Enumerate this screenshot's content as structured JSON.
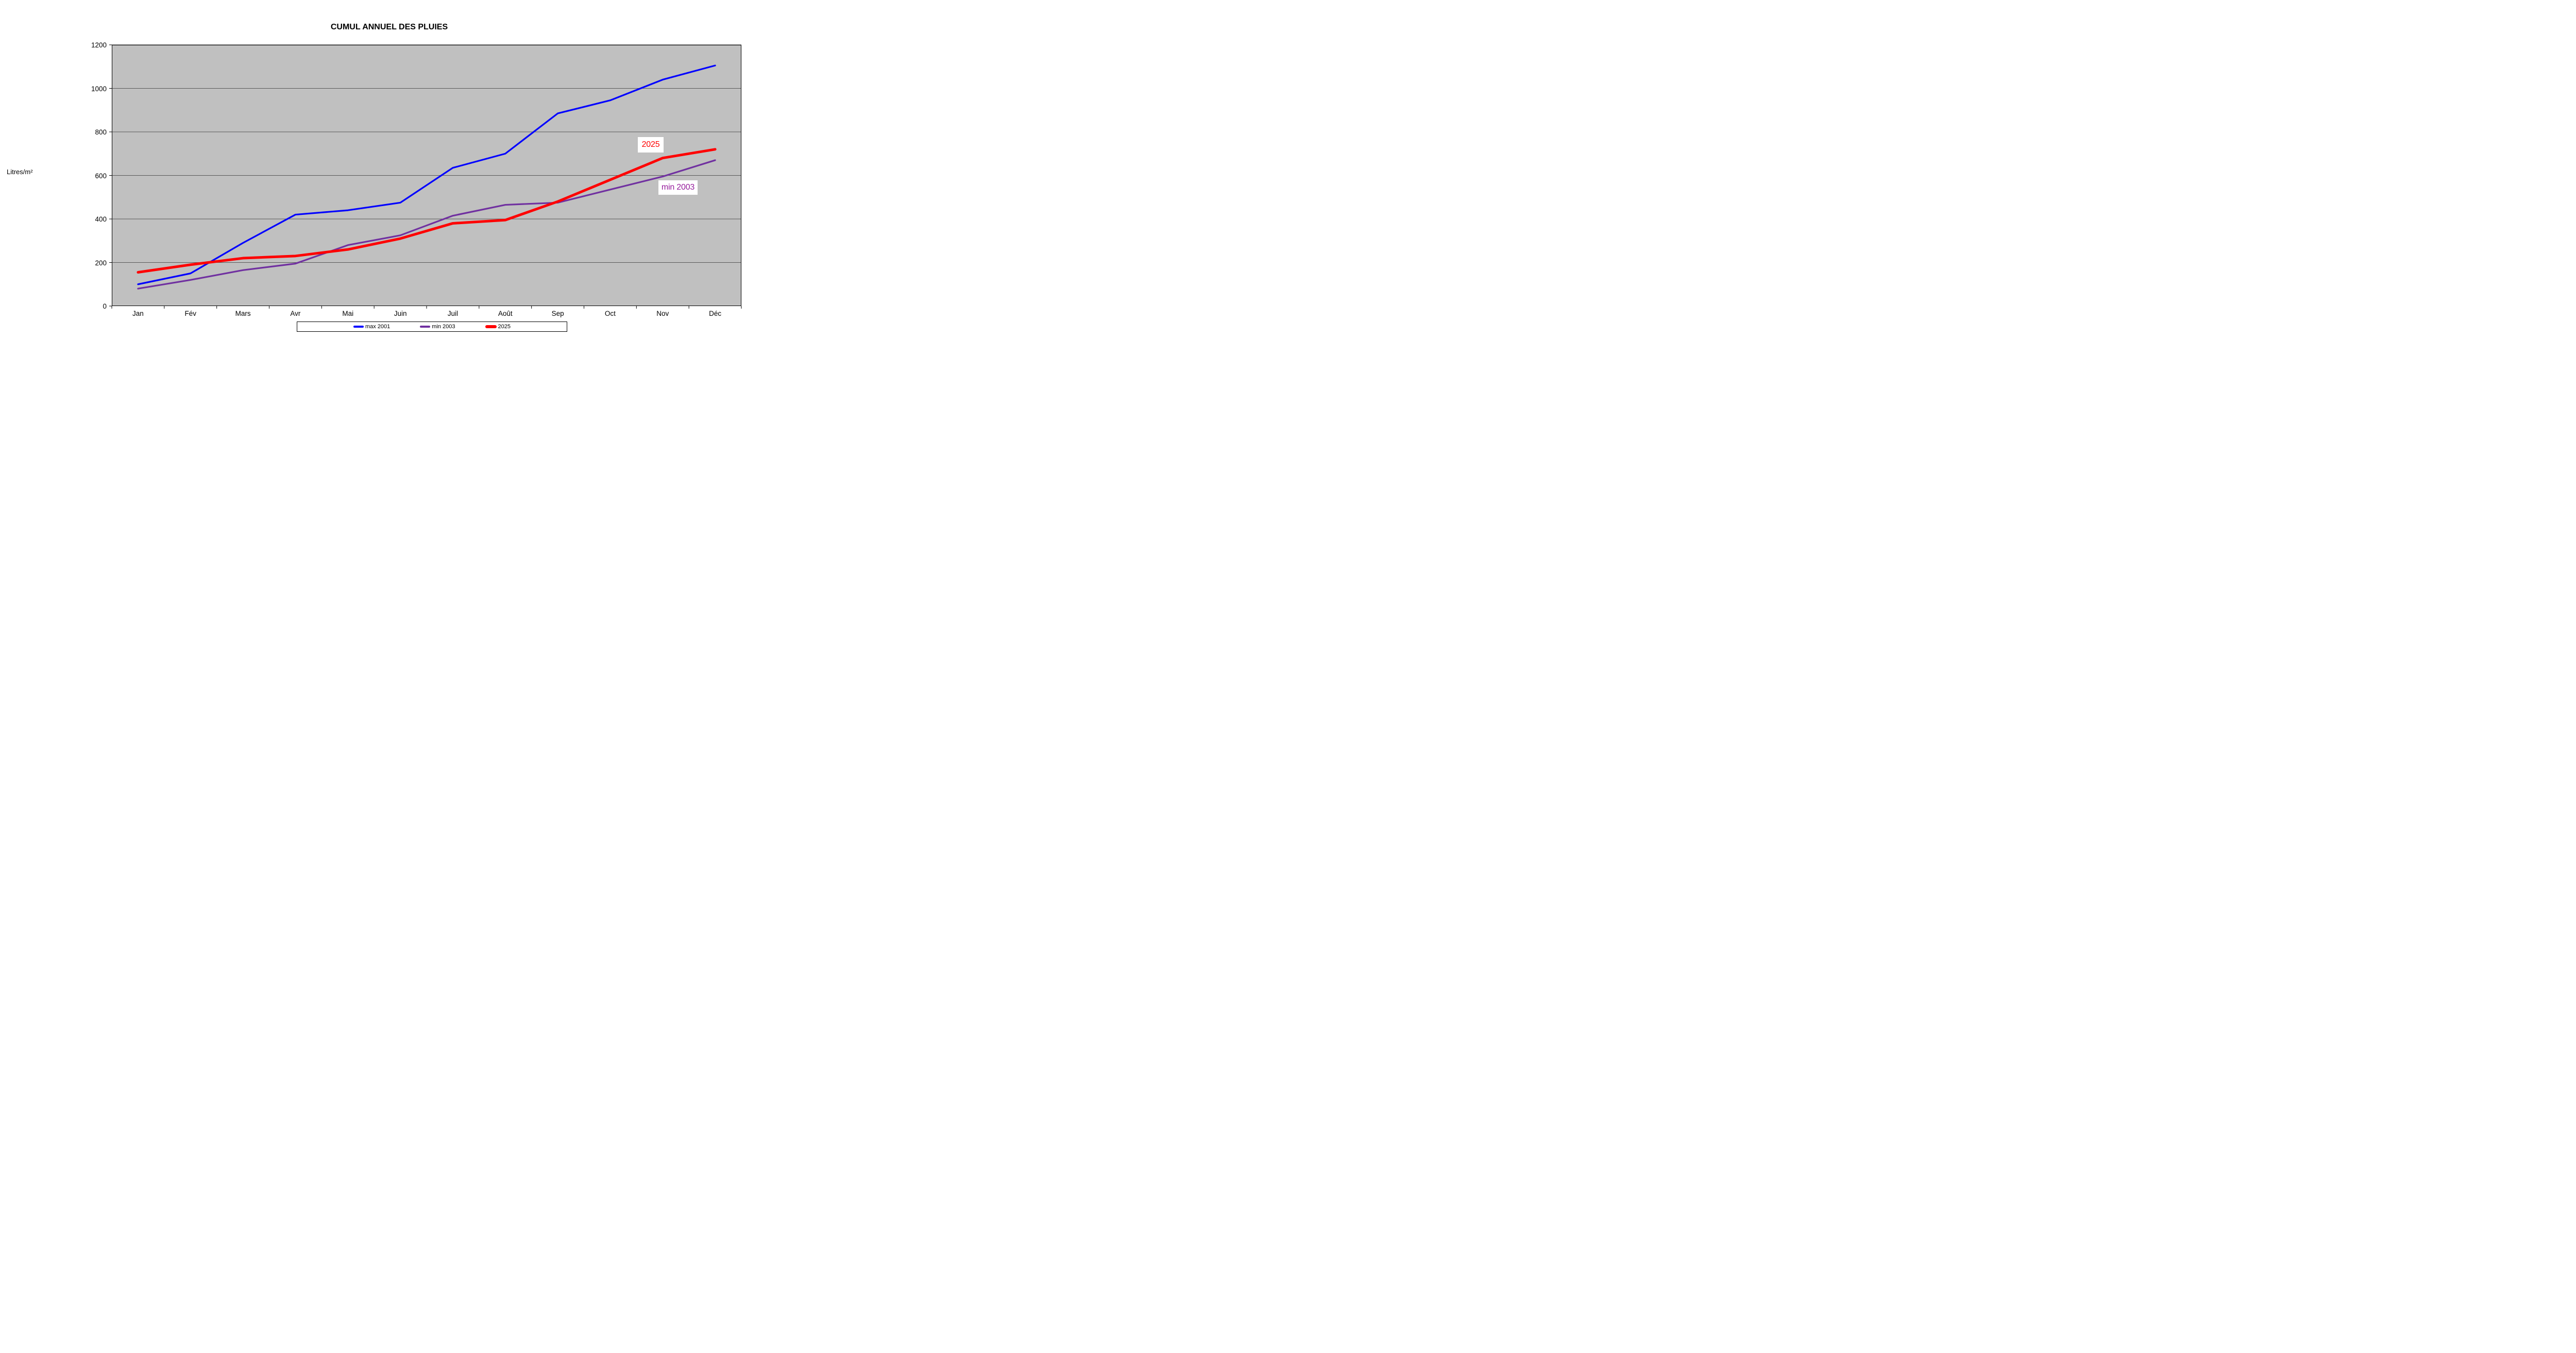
{
  "title": "CUMUL ANNUEL DES PLUIES",
  "y_axis": {
    "title": "Litres/m²",
    "ticks": [
      0,
      200,
      400,
      600,
      800,
      1000,
      1200
    ]
  },
  "x_axis": {
    "categories": [
      "Jan",
      "Fév",
      "Mars",
      "Avr",
      "Mai",
      "Juin",
      "Juil",
      "Août",
      "Sep",
      "Oct",
      "Nov",
      "Déc"
    ]
  },
  "legend": {
    "entries": [
      {
        "label": "max 2001",
        "color": "#0000FF",
        "swatch_height": 3.5,
        "swatch_width": 20
      },
      {
        "label": "min 2003",
        "color": "#7030A0",
        "swatch_height": 3.5,
        "swatch_width": 20
      },
      {
        "label": "2025",
        "color": "#FF0000",
        "swatch_height": 6,
        "swatch_width": 22
      }
    ]
  },
  "annotations": [
    {
      "text": "2025",
      "color": "#FF0000"
    },
    {
      "text": "min 2003",
      "color": "#951B9B"
    }
  ],
  "colors": {
    "plot_background": "#C0C0C0",
    "gridline": "#595959",
    "plot_border": "#000000",
    "page_background": "#FFFFFF"
  },
  "chart_data": {
    "type": "line",
    "title": "CUMUL ANNUEL DES PLUIES",
    "xlabel": "",
    "ylabel": "Litres/m²",
    "ylim": [
      0,
      1200
    ],
    "grid": true,
    "legend_position": "bottom",
    "categories": [
      "Jan",
      "Fév",
      "Mars",
      "Avr",
      "Mai",
      "Juin",
      "Juil",
      "Août",
      "Sep",
      "Oct",
      "Nov",
      "Déc"
    ],
    "series": [
      {
        "name": "max 2001",
        "color": "#0000FF",
        "line_width": 3.2,
        "values": [
          100,
          150,
          290,
          420,
          440,
          475,
          635,
          700,
          885,
          945,
          1040,
          1105
        ]
      },
      {
        "name": "min 2003",
        "color": "#7030A0",
        "line_width": 3.2,
        "values": [
          80,
          120,
          165,
          195,
          280,
          325,
          415,
          465,
          475,
          535,
          595,
          670
        ]
      },
      {
        "name": "2025",
        "color": "#FF0000",
        "line_width": 5,
        "values": [
          155,
          190,
          220,
          230,
          260,
          310,
          380,
          395,
          480,
          580,
          680,
          720
        ]
      }
    ]
  }
}
